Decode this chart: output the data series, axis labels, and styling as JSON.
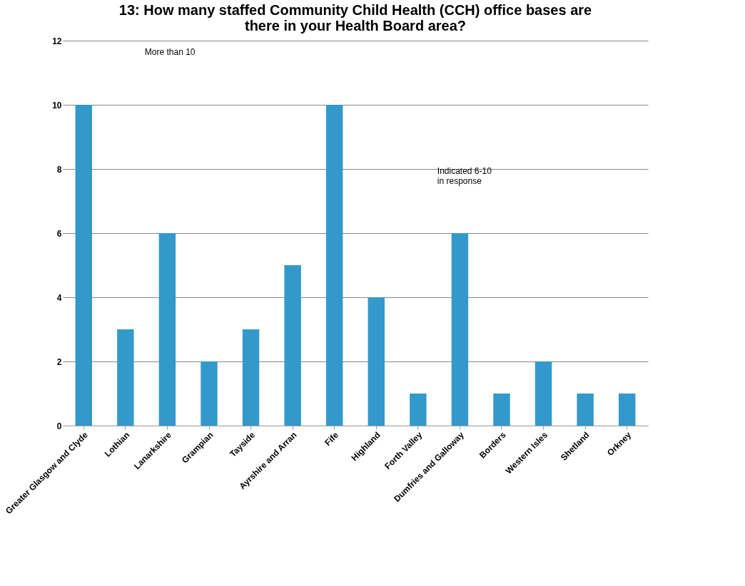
{
  "chart_data": {
    "type": "bar",
    "title": [
      "13: How many staffed Community Child Health (CCH) office bases are",
      "there in your Health Board area?"
    ],
    "categories": [
      "Greater Glasgow and Clyde",
      "Lothian",
      "Lanarkshire",
      "Grampian",
      "Tayside",
      "Ayrshire and Arran",
      "Fife",
      "Highland",
      "Forth Valley",
      "Dumfries and Galloway",
      "Borders",
      "Western Isles",
      "Shetland",
      "Orkney"
    ],
    "values": [
      10,
      3,
      6,
      2,
      3,
      5,
      10,
      4,
      1,
      6,
      1,
      2,
      1,
      1
    ],
    "color": "#3399cc",
    "ylim": [
      0,
      12
    ],
    "yticks": [
      0,
      2,
      4,
      6,
      8,
      10,
      12
    ],
    "grid": "y",
    "annotations": [
      "More than 10",
      "Indicated 6-10\nin response"
    ]
  }
}
